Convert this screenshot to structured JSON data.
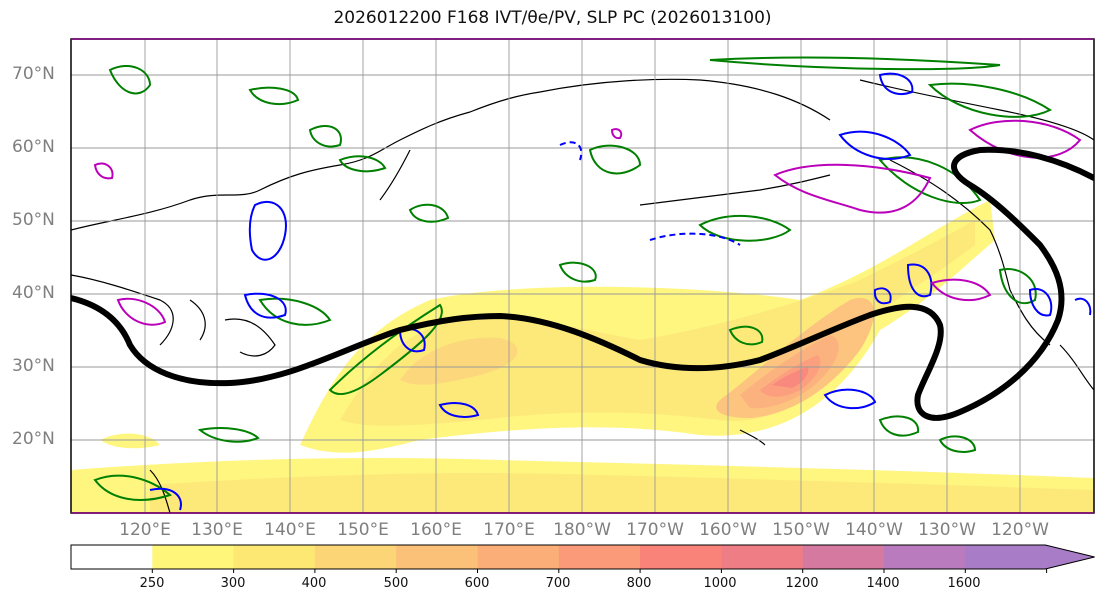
{
  "title": "2026012200 F168 IVT/θe/PV, SLP PC (2026013100)",
  "lat_labels": [
    "70°N",
    "60°N",
    "50°N",
    "40°N",
    "30°N",
    "20°N"
  ],
  "lon_labels": [
    "120°E",
    "130°E",
    "140°E",
    "150°E",
    "160°E",
    "170°E",
    "180°W",
    "170°W",
    "160°W",
    "150°W",
    "140°W",
    "130°W",
    "120°W"
  ],
  "colorbar": {
    "levels": [
      "250",
      "300",
      "400",
      "500",
      "600",
      "700",
      "800",
      "1000",
      "1200",
      "1400",
      "1600"
    ],
    "colors": [
      "#ffffff",
      "#fff67a",
      "#fde873",
      "#fcd576",
      "#fcc179",
      "#fcae79",
      "#fb9a78",
      "#f98279",
      "#ef7d85",
      "#d579a1",
      "#b97bbd",
      "#a97cc8"
    ]
  },
  "contour_colors": {
    "ivt_jet": "#000000",
    "pv": "#0000ff",
    "theta_e": "#008000",
    "magenta": "#bb00bb"
  }
}
